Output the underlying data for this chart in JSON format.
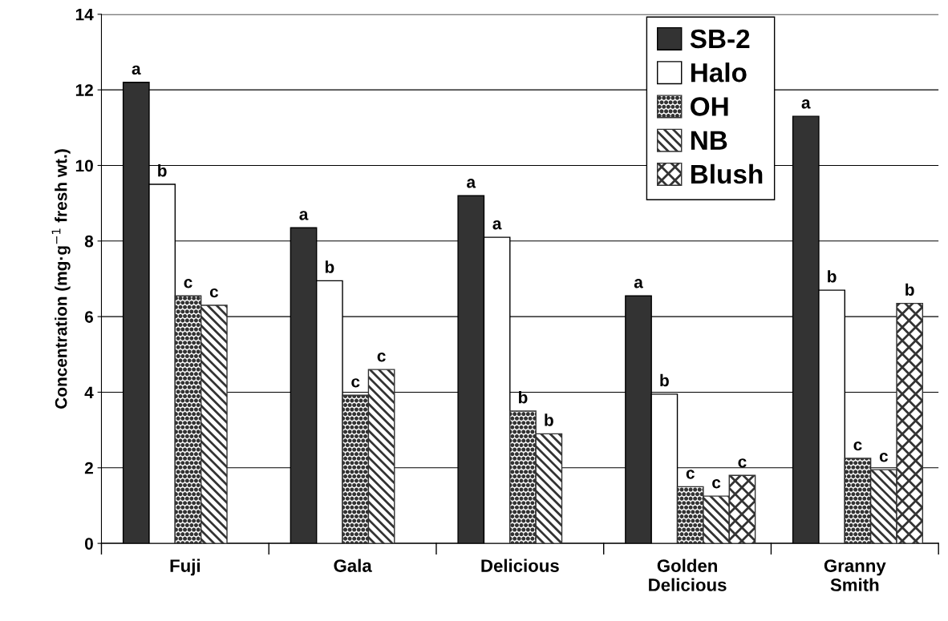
{
  "chart_data": {
    "type": "bar",
    "ylabel": "Concentration (mg·g$^{−1}$ fresh wt.)",
    "categories": [
      "Fuji",
      "Gala",
      "Delicious",
      "Golden\nDelicious",
      "Granny\nSmith"
    ],
    "series": [
      {
        "name": "SB-2",
        "color": "#333333",
        "values": [
          12.2,
          8.35,
          9.2,
          6.55,
          11.3
        ],
        "value_labels": [
          "a",
          "a",
          "a",
          "a",
          "a"
        ]
      },
      {
        "name": "Halo",
        "color": "#ffffff",
        "values": [
          9.5,
          6.95,
          8.1,
          3.95,
          6.7
        ],
        "value_labels": [
          "b",
          "b",
          "a",
          "b",
          "b"
        ]
      },
      {
        "name": "OH",
        "color": "#333333",
        "values": [
          6.55,
          3.92,
          3.5,
          1.5,
          2.25
        ],
        "value_labels": [
          "c",
          "c",
          "b",
          "c",
          "c"
        ]
      },
      {
        "name": "NB",
        "color": "#333333",
        "values": [
          6.3,
          4.6,
          2.9,
          1.25,
          1.95
        ],
        "value_labels": [
          "c",
          "c",
          "b",
          "c",
          "c"
        ]
      },
      {
        "name": "Blush",
        "color": "#333333",
        "values": [
          null,
          null,
          null,
          1.8,
          6.35
        ],
        "value_labels": [
          null,
          null,
          null,
          "c",
          "b"
        ]
      }
    ],
    "ylim": [
      0,
      14
    ],
    "yticks": [
      0,
      2,
      4,
      6,
      8,
      10,
      12,
      14
    ],
    "grid": "y",
    "legend": "top right"
  }
}
